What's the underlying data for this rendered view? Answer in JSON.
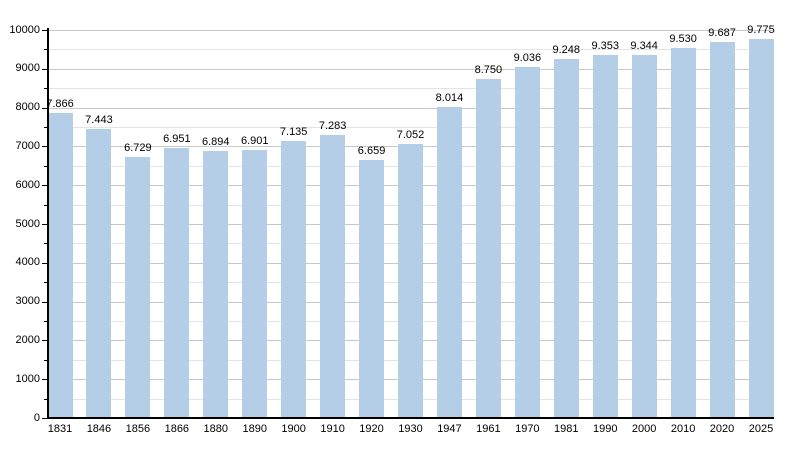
{
  "chart_data": {
    "type": "bar",
    "title": "",
    "xlabel": "",
    "ylabel": "",
    "categories": [
      "1831",
      "1846",
      "1856",
      "1866",
      "1880",
      "1890",
      "1900",
      "1910",
      "1920",
      "1930",
      "1947",
      "1961",
      "1970",
      "1981",
      "1990",
      "2000",
      "2010",
      "2020",
      "2025"
    ],
    "values": [
      7866,
      7443,
      6729,
      6951,
      6894,
      6901,
      7135,
      7283,
      6659,
      7052,
      8014,
      8750,
      9036,
      9248,
      9353,
      9344,
      9530,
      9687,
      9775
    ],
    "bar_labels": [
      "7.866",
      "7.443",
      "6.729",
      "6.951",
      "6.894",
      "6.901",
      "7.135",
      "7.283",
      "6.659",
      "7.052",
      "8.014",
      "8.750",
      "9.036",
      "9.248",
      "9.353",
      "9.344",
      "9.530",
      "9.687",
      "9.775"
    ],
    "y_tick_labels": [
      "0",
      "1000",
      "2000",
      "3000",
      "4000",
      "5000",
      "6000",
      "7000",
      "8000",
      "9000",
      "10000"
    ],
    "ylim": [
      0,
      10000
    ],
    "y_major_step": 1000,
    "y_minor_step": 500,
    "grid": true,
    "legend": null,
    "colors": {
      "bar_fill": "#b5cee7",
      "grid_major": "#c8c8c8",
      "grid_minor": "#e4e4e4",
      "axis": "#000000",
      "text": "#000000",
      "background": "#ffffff"
    }
  }
}
